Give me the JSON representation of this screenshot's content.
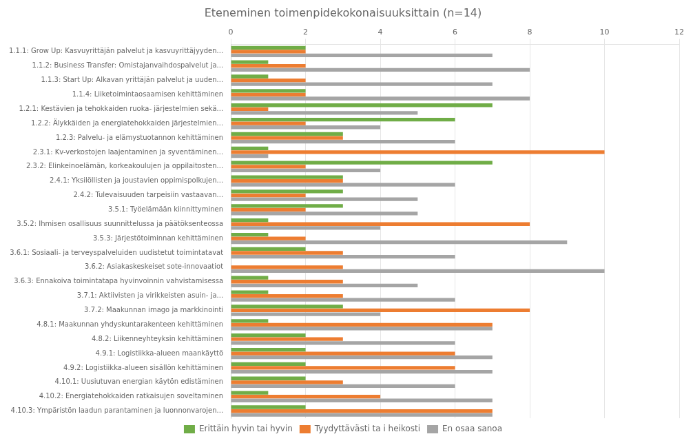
{
  "chart_data": {
    "type": "bar",
    "orientation": "horizontal",
    "title": "Eteneminen toimenpidekokonaisuuksittain (n=14)",
    "categories": [
      "1.1.1: Grow Up: Kasvuyrittäjän palvelut ja kasvuyrittäjyyden...",
      "1.1.2: Business Transfer: Omistajanvaihdospalvelut ja...",
      "1.1.3: Start Up: Alkavan yrittäjän palvelut ja uuden...",
      "1.1.4: Liiketoimintaosaamisen kehittäminen",
      "1.2.1: Kestävien ja tehokkaiden ruoka- järjestelmien sekä...",
      "1.2.2: Älykkäiden ja energiatehokkaiden järjestelmien...",
      "1.2.3: Palvelu- ja elämystuotannon kehittäminen",
      "2.3.1: Kv-verkostojen laajentaminen ja syventäminen...",
      "2.3.2: Elinkeinoelämän, korkeakoulujen ja oppilaitosten...",
      "2.4.1: Yksilöllisten ja joustavien oppimispolkujen...",
      "2.4.2: Tulevaisuuden tarpeisiin vastaavan...",
      "3.5.1: Työelämään kiinnittyminen",
      "3.5.2: Ihmisen osallisuus suunnittelussa ja päätöksenteossa",
      "3.5.3: Järjestötoiminnan kehittäminen",
      "3.6.1: Sosiaali- ja terveyspalveluiden uudistetut toimintatavat",
      "3.6.2: Asiakaskeskeiset sote-innovaatiot",
      "3.6.3: Ennakoiva toimintatapa hyvinvoinnin vahvistamisessa",
      "3.7.1: Aktiivisten ja virikkeisten asuin- ja...",
      "3.7.2: Maakunnan imago ja markkinointi",
      "4.8.1: Maakunnan yhdyskuntarakenteen kehittäminen",
      "4.8.2: Liikenneyhteyksin kehittäminen",
      "4.9.1: Logistiikka-alueen maankäyttö",
      "4.9.2: Logistiikka-alueen sisällön kehittäminen",
      "4.10.1: Uusiutuvan energian käytön edistäminen",
      "4.10.2: Energiatehokkaiden ratkaisujen soveltaminen",
      "4.10.3: Ympäristön laadun parantaminen ja luonnonvarojen..."
    ],
    "series": [
      {
        "name": "Erittäin hyvin tai hyvin",
        "color": "#70ad47",
        "values": [
          2,
          1,
          1,
          2,
          7,
          6,
          3,
          1,
          7,
          3,
          3,
          3,
          1,
          1,
          2,
          0,
          1,
          1,
          3,
          1,
          2,
          2,
          2,
          2,
          1,
          2
        ]
      },
      {
        "name": "Tyydyttävästi ta i heikosti",
        "color": "#ed7d31",
        "values": [
          2,
          2,
          2,
          2,
          1,
          2,
          3,
          10,
          2,
          3,
          2,
          2,
          8,
          2,
          3,
          3,
          3,
          3,
          8,
          7,
          3,
          6,
          6,
          3,
          4,
          7
        ]
      },
      {
        "name": "En osaa sanoa",
        "color": "#a5a5a5",
        "values": [
          7,
          8,
          7,
          8,
          5,
          4,
          6,
          1,
          4,
          6,
          5,
          5,
          4,
          9,
          6,
          10,
          5,
          6,
          4,
          7,
          6,
          7,
          7,
          6,
          7,
          7
        ]
      }
    ],
    "xlim": [
      0,
      12
    ],
    "xticks": [
      0,
      2,
      4,
      6,
      8,
      10,
      12
    ],
    "grid": true,
    "legend": "bottom"
  }
}
